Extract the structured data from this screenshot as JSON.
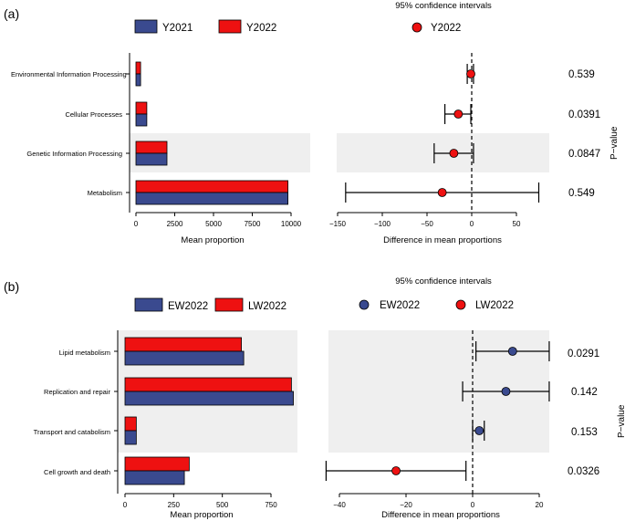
{
  "colors": {
    "blue": "#3a4a8f",
    "red": "#ee1111",
    "grid_band": "#efefef",
    "axis": "#000000"
  },
  "chart_data": [
    {
      "panel_label": "(a)",
      "type": "bar",
      "title": "",
      "legend": {
        "entries": [
          "Y2021",
          "Y2022"
        ],
        "position": "top"
      },
      "categories": [
        "Environmental Information Processing",
        "Cellular Processes",
        "Genetic Information Processing",
        "Metabolism"
      ],
      "series": [
        {
          "name": "Y2022",
          "values": [
            300,
            700,
            2000,
            9800
          ]
        },
        {
          "name": "Y2021",
          "values": [
            300,
            700,
            2000,
            9800
          ]
        }
      ],
      "shaded_rows": [
        2
      ],
      "xlabel": "Mean proportion",
      "xlim": [
        0,
        10000
      ],
      "xticks": [
        0,
        2500,
        5000,
        7500,
        10000
      ],
      "ci": {
        "title": "95% confidence intervals",
        "legend": "Y2022",
        "xlabel": "Difference in mean proportions",
        "xlim": [
          -150,
          85
        ],
        "xticks": [
          -150,
          -100,
          -50,
          0,
          50
        ],
        "points": [
          {
            "estimate": -1,
            "lower": -5,
            "upper": 2,
            "color": "red"
          },
          {
            "estimate": -15,
            "lower": -30,
            "upper": -1,
            "color": "red"
          },
          {
            "estimate": -20,
            "lower": -42,
            "upper": 2,
            "color": "red"
          },
          {
            "estimate": -33,
            "lower": -141,
            "upper": 75,
            "color": "red"
          }
        ]
      },
      "pvalue_label": "P−value",
      "pvalues": [
        "0.539",
        "0.0391",
        "0.0847",
        "0.549"
      ]
    },
    {
      "panel_label": "(b)",
      "type": "bar",
      "title": "",
      "legend": {
        "entries": [
          "EW2022",
          "LW2022"
        ],
        "position": "top"
      },
      "categories": [
        "Lipid metabolism",
        "Replication and repair",
        "Transport and catabolism",
        "Cell growth and death"
      ],
      "series": [
        {
          "name": "LW2022",
          "values": [
            598,
            855,
            58,
            330
          ]
        },
        {
          "name": "EW2022",
          "values": [
            610,
            865,
            58,
            305
          ]
        }
      ],
      "shaded_rows": [
        0,
        1,
        2
      ],
      "xlabel": "Mean proportion",
      "xlim": [
        0,
        880
      ],
      "xticks": [
        0,
        250,
        500,
        750
      ],
      "ci": {
        "title": "95% confidence intervals",
        "legend": [
          "EW2022",
          "LW2022"
        ],
        "xlabel": "Difference in mean proportions",
        "xlim": [
          -47,
          27
        ],
        "xticks": [
          -40,
          -20,
          0,
          20
        ],
        "points": [
          {
            "estimate": 12,
            "lower": 1,
            "upper": 23,
            "color": "blue"
          },
          {
            "estimate": 10,
            "lower": -3,
            "upper": 23,
            "color": "blue"
          },
          {
            "estimate": 2,
            "lower": 0,
            "upper": 3.5,
            "color": "blue"
          },
          {
            "estimate": -23,
            "lower": -44,
            "upper": -2,
            "color": "red"
          }
        ]
      },
      "pvalue_label": "P−value",
      "pvalues": [
        "0.0291",
        "0.142",
        "0.153",
        "0.0326"
      ]
    }
  ]
}
